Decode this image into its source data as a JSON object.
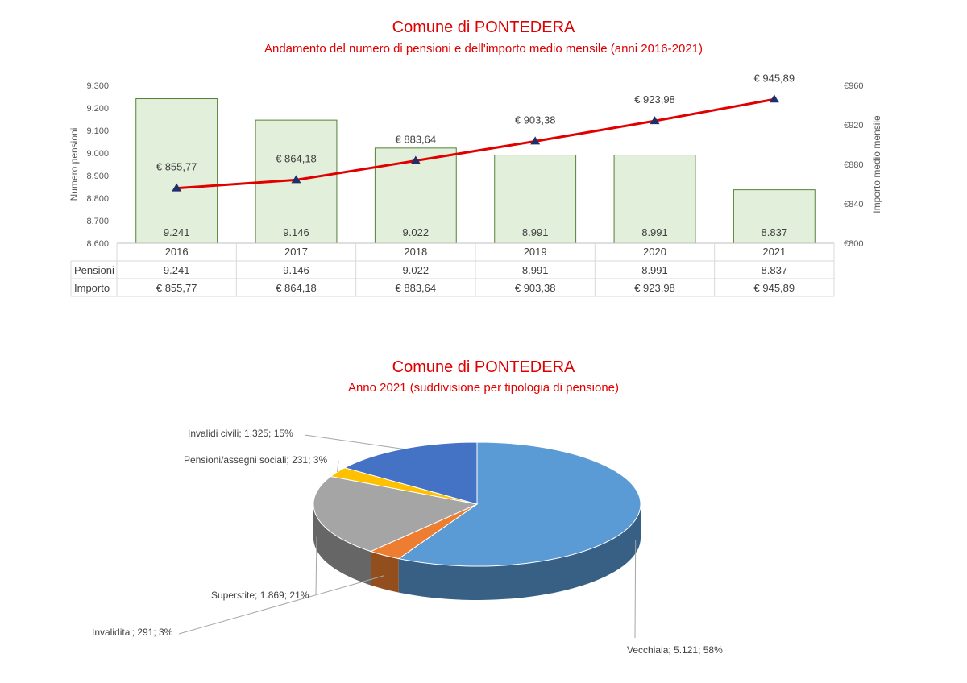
{
  "chart_data": [
    {
      "type": "bar",
      "title": "Comune di PONTEDERA",
      "subtitle": "Andamento del numero di pensioni e dell'importo medio mensile (anni 2016-2021)",
      "categories": [
        "2016",
        "2017",
        "2018",
        "2019",
        "2020",
        "2021"
      ],
      "series": [
        {
          "name": "Pensioni",
          "kind": "bar",
          "axis": "left",
          "values": [
            9241,
            9146,
            9022,
            8991,
            8991,
            8837
          ],
          "labels": [
            "9.241",
            "9.146",
            "9.022",
            "8.991",
            "8.991",
            "8.837"
          ],
          "color": "#e2efda",
          "border": "#548235"
        },
        {
          "name": "Importo",
          "kind": "line",
          "axis": "right",
          "values": [
            855.77,
            864.18,
            883.64,
            903.38,
            923.98,
            945.89
          ],
          "labels": [
            "€ 855,77",
            "€ 864,18",
            "€ 883,64",
            "€ 903,38",
            "€ 923,98",
            "€ 945,89"
          ],
          "color": "#e00000",
          "marker_color": "#1f2f6b"
        }
      ],
      "ylabel": "Numero pensioni",
      "ylabel_right": "Importo medio mensile",
      "ylim": [
        8600,
        9300
      ],
      "yticks": [
        8600,
        8700,
        8800,
        8900,
        9000,
        9100,
        9200,
        9300
      ],
      "ytick_labels": [
        "8.600",
        "8.700",
        "8.800",
        "8.900",
        "9.000",
        "9.100",
        "9.200",
        "9.300"
      ],
      "ylim_right": [
        800,
        960
      ],
      "yticks_right": [
        800,
        840,
        880,
        920,
        960
      ],
      "ytick_labels_right": [
        "€800",
        "€840",
        "€880",
        "€920",
        "€960"
      ],
      "data_table": true,
      "grid": false
    },
    {
      "type": "pie",
      "title": "Comune di PONTEDERA",
      "subtitle": "Anno 2021 (suddivisione per tipologia di pensione)",
      "style": "3d",
      "slices": [
        {
          "name": "Vecchiaia",
          "value": 5121,
          "percent": 58,
          "label": "Vecchiaia; 5.121; 58%",
          "color": "#5b9bd5"
        },
        {
          "name": "Invalidita'",
          "value": 291,
          "percent": 3,
          "label": "Invalidita'; 291; 3%",
          "color": "#ed7d31"
        },
        {
          "name": "Superstite",
          "value": 1869,
          "percent": 21,
          "label": "Superstite; 1.869; 21%",
          "color": "#a5a5a5"
        },
        {
          "name": "Pensioni/assegni sociali",
          "value": 231,
          "percent": 3,
          "label": "Pensioni/assegni sociali; 231; 3%",
          "color": "#ffc000"
        },
        {
          "name": "Invalidi civili",
          "value": 1325,
          "percent": 15,
          "label": "Invalidi civili; 1.325; 15%",
          "color": "#4472c4"
        }
      ]
    }
  ]
}
